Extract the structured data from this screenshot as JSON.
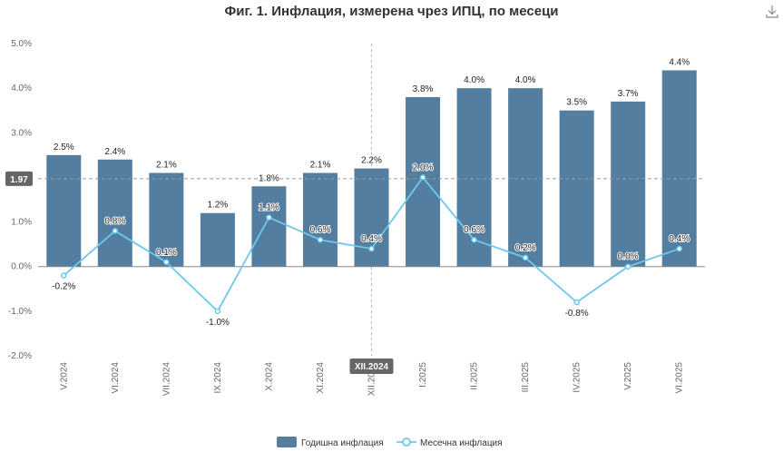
{
  "chart_data": {
    "type": "bar",
    "title": "Фиг. 1. Инфлация, измерена чрез ИПЦ, по месеци",
    "categories": [
      "V.2024",
      "VI.2024",
      "VII.2024",
      "IX.2024",
      "X.2024",
      "XI.2024",
      "XII.2024",
      "I.2025",
      "II.2025",
      "III.2025",
      "IV.2025",
      "V.2025",
      "VI.2025"
    ],
    "series": [
      {
        "name": "Годишна инфлация",
        "type": "bar",
        "color": "#537EA0",
        "values": [
          2.5,
          2.4,
          2.1,
          1.2,
          1.8,
          2.1,
          2.2,
          3.8,
          4.0,
          4.0,
          3.5,
          3.7,
          4.4
        ]
      },
      {
        "name": "Месечна инфлация",
        "type": "line",
        "color": "#6CC8EE",
        "values": [
          -0.2,
          0.8,
          0.1,
          -1.0,
          1.1,
          0.6,
          0.4,
          2.0,
          0.6,
          0.2,
          -0.8,
          0.0,
          0.4
        ]
      }
    ],
    "y_ticks": [
      "-2.0%",
      "-1.0%",
      "0.0%",
      "1.0%",
      "2.0%",
      "3.0%",
      "4.0%",
      "5.0%"
    ],
    "ylim": [
      -2.0,
      5.0
    ],
    "bar_labels": [
      "2.5%",
      "2.4%",
      "2.1%",
      "1.2%",
      "1.8%",
      "2.1%",
      "2.2%",
      "3.8%",
      "4.0%",
      "4.0%",
      "3.5%",
      "3.7%",
      "4.4%"
    ],
    "line_labels": [
      "-0.2%",
      "0.8%",
      "0.1%",
      "-1.0%",
      "1.1%",
      "0.6%",
      "0.4%",
      "2.0%",
      "0.6%",
      "0.2%",
      "-0.8%",
      "0.0%",
      "0.4%"
    ],
    "crosshair": {
      "y_value": 1.97,
      "y_label": "1.97",
      "x_index": 6,
      "x_label": "XII.2024"
    },
    "legend_position": "bottom-center",
    "grid": false
  },
  "toolbar": {
    "download_icon": "download-icon"
  }
}
